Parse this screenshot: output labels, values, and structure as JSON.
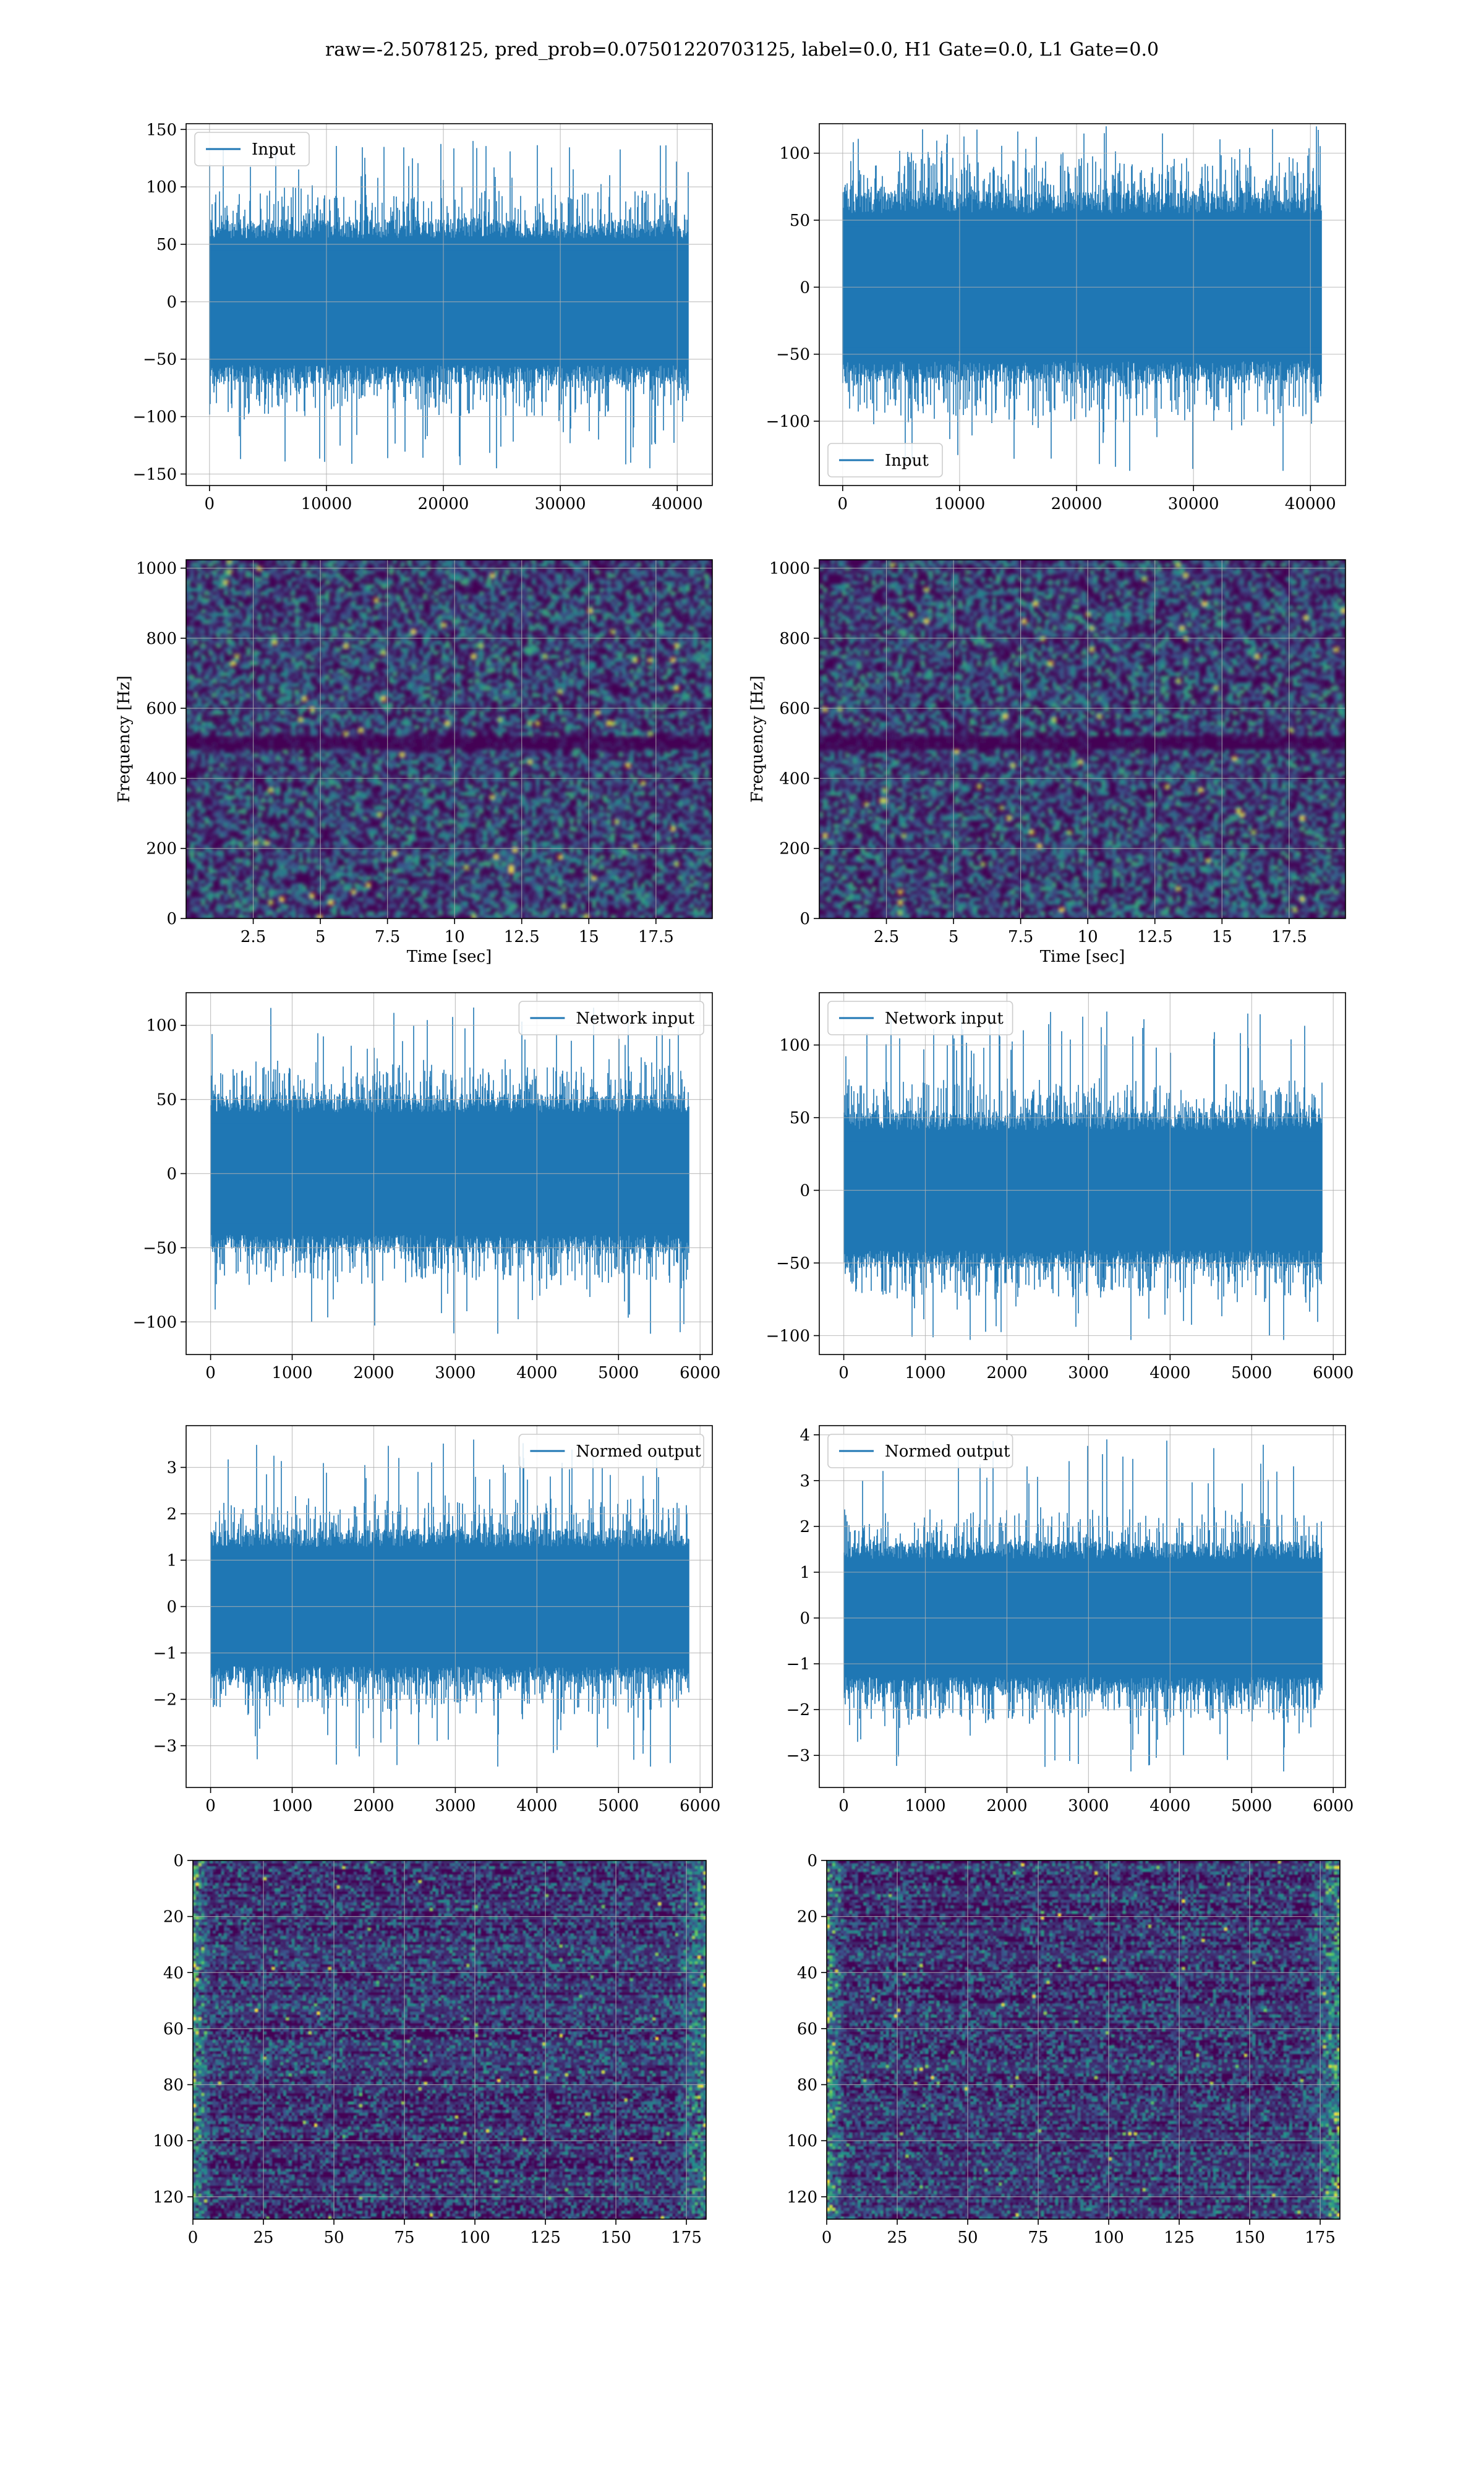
{
  "figure": {
    "suptitle": "raw=-2.5078125, pred_prob=0.07501220703125, label=0.0, H1 Gate=0.0, L1 Gate=0.0"
  },
  "colors": {
    "line": "#1f77b4",
    "grid": "#b0b0b0",
    "viridis_low": "#440154",
    "viridis_mid": "#21918c",
    "viridis_high": "#fde725"
  },
  "chart_data": [
    {
      "id": "input-left",
      "type": "line",
      "style": "noise",
      "legend": "Input",
      "legend_loc": "upper left",
      "xlim": [
        -2000,
        43000
      ],
      "ylim": [
        -160,
        155
      ],
      "xticks": [
        0,
        10000,
        20000,
        30000,
        40000
      ],
      "yticks": [
        -150,
        -100,
        -50,
        0,
        50,
        100,
        150
      ],
      "n_samples": 40960,
      "x_end": 40960,
      "band": [
        -60,
        60
      ],
      "extremes": [
        -145,
        140
      ],
      "grid": true
    },
    {
      "id": "input-right",
      "type": "line",
      "style": "noise",
      "legend": "Input",
      "legend_loc": "lower left",
      "xlim": [
        -2000,
        43000
      ],
      "ylim": [
        -148,
        122
      ],
      "xticks": [
        0,
        10000,
        20000,
        30000,
        40000
      ],
      "yticks": [
        -100,
        -50,
        0,
        50,
        100
      ],
      "n_samples": 40960,
      "x_end": 40960,
      "band": [
        -60,
        60
      ],
      "extremes": [
        -137,
        120
      ],
      "grid": true
    },
    {
      "id": "spec-left",
      "type": "heatmap",
      "style": "spectrogram",
      "xlim": [
        0,
        19.6
      ],
      "ylim": [
        0,
        1024
      ],
      "xticks": [
        2.5,
        5.0,
        7.5,
        10.0,
        12.5,
        15.0,
        17.5
      ],
      "yticks": [
        0,
        200,
        400,
        600,
        800,
        1000
      ],
      "xlabel": "Time [sec]",
      "ylabel": "Frequency [Hz]",
      "quiet_band_hz": [
        480,
        520
      ],
      "grid": true
    },
    {
      "id": "spec-right",
      "type": "heatmap",
      "style": "spectrogram",
      "xlim": [
        0,
        19.6
      ],
      "ylim": [
        0,
        1024
      ],
      "xticks": [
        2.5,
        5.0,
        7.5,
        10.0,
        12.5,
        15.0,
        17.5
      ],
      "yticks": [
        0,
        200,
        400,
        600,
        800,
        1000
      ],
      "xlabel": "Time [sec]",
      "ylabel": "Frequency [Hz]",
      "quiet_band_hz": [
        480,
        520
      ],
      "grid": true
    },
    {
      "id": "net-left",
      "type": "line",
      "style": "noise",
      "legend": "Network input",
      "legend_loc": "upper right",
      "xlim": [
        -300,
        6150
      ],
      "ylim": [
        -122,
        122
      ],
      "xticks": [
        0,
        1000,
        2000,
        3000,
        4000,
        5000,
        6000
      ],
      "yticks": [
        -100,
        -50,
        0,
        50,
        100
      ],
      "n_samples": 5860,
      "x_end": 5860,
      "band": [
        -45,
        45
      ],
      "extremes": [
        -108,
        112
      ],
      "grid": true
    },
    {
      "id": "net-right",
      "type": "line",
      "style": "noise",
      "legend": "Network input",
      "legend_loc": "upper left",
      "xlim": [
        -300,
        6150
      ],
      "ylim": [
        -113,
        136
      ],
      "xticks": [
        0,
        1000,
        2000,
        3000,
        4000,
        5000,
        6000
      ],
      "yticks": [
        -100,
        -50,
        0,
        50,
        100
      ],
      "n_samples": 5860,
      "x_end": 5860,
      "band": [
        -45,
        45
      ],
      "extremes": [
        -103,
        123
      ],
      "grid": true
    },
    {
      "id": "norm-left",
      "type": "line",
      "style": "noise",
      "legend": "Normed output",
      "legend_loc": "upper right",
      "xlim": [
        -300,
        6150
      ],
      "ylim": [
        -3.9,
        3.9
      ],
      "xticks": [
        0,
        1000,
        2000,
        3000,
        4000,
        5000,
        6000
      ],
      "yticks": [
        -3,
        -2,
        -1,
        0,
        1,
        2,
        3
      ],
      "n_samples": 5860,
      "x_end": 5860,
      "band": [
        -1.4,
        1.4
      ],
      "extremes": [
        -3.45,
        3.6
      ],
      "grid": true
    },
    {
      "id": "norm-right",
      "type": "line",
      "style": "noise",
      "legend": "Normed output",
      "legend_loc": "upper left",
      "xlim": [
        -300,
        6150
      ],
      "ylim": [
        -3.7,
        4.2
      ],
      "xticks": [
        0,
        1000,
        2000,
        3000,
        4000,
        5000,
        6000
      ],
      "yticks": [
        -3,
        -2,
        -1,
        0,
        1,
        2,
        3,
        4
      ],
      "n_samples": 5860,
      "x_end": 5860,
      "band": [
        -1.4,
        1.4
      ],
      "extremes": [
        -3.35,
        3.9
      ],
      "grid": true
    },
    {
      "id": "feat-left",
      "type": "heatmap",
      "style": "features",
      "xlim": [
        0,
        182
      ],
      "ylim": [
        128,
        0
      ],
      "xticks": [
        0,
        25,
        50,
        75,
        100,
        125,
        150,
        175
      ],
      "yticks": [
        0,
        20,
        40,
        60,
        80,
        100,
        120
      ],
      "n_cols": 182,
      "n_rows": 128,
      "grid": true
    },
    {
      "id": "feat-right",
      "type": "heatmap",
      "style": "features",
      "xlim": [
        0,
        182
      ],
      "ylim": [
        128,
        0
      ],
      "xticks": [
        0,
        25,
        50,
        75,
        100,
        125,
        150,
        175
      ],
      "yticks": [
        0,
        20,
        40,
        60,
        80,
        100,
        120
      ],
      "n_cols": 182,
      "n_rows": 128,
      "grid": true
    }
  ]
}
